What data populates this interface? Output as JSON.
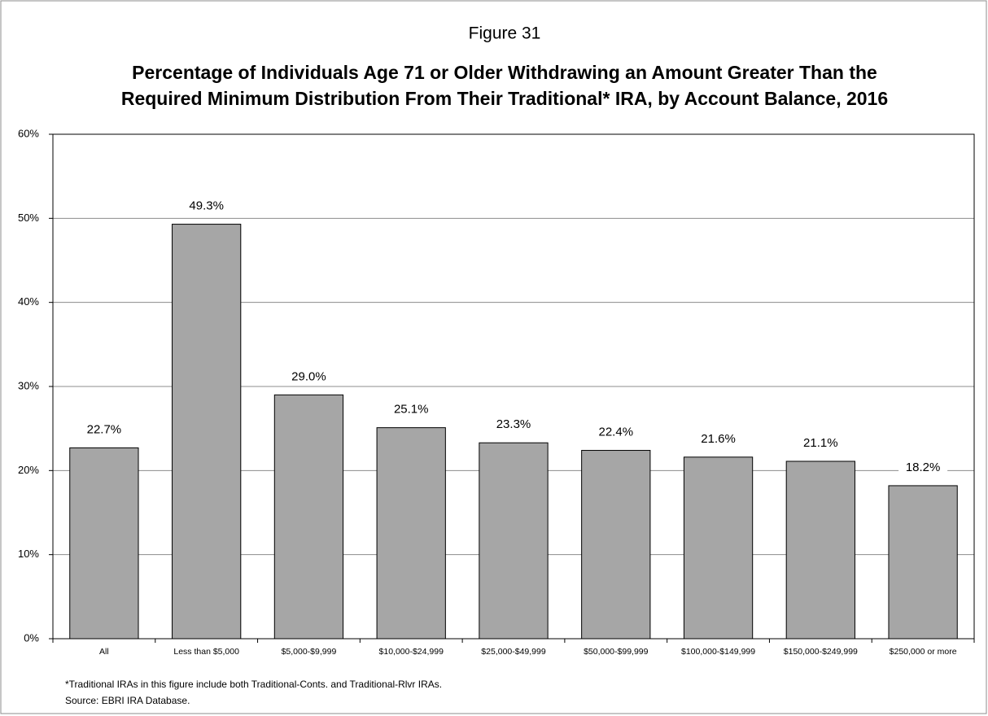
{
  "chart_data": {
    "type": "bar",
    "supertitle": "Figure 31",
    "title": [
      "Percentage of Individuals Age 71 or Older Withdrawing an Amount Greater Than the",
      "Required Minimum Distribution From Their Traditional* IRA, by Account Balance, 2016"
    ],
    "categories": [
      "All",
      "Less than $5,000",
      "$5,000-$9,999",
      "$10,000-$24,999",
      "$25,000-$49,999",
      "$50,000-$99,999",
      "$100,000-$149,999",
      "$150,000-$249,999",
      "$250,000 or more"
    ],
    "values": [
      22.7,
      49.3,
      29.0,
      25.1,
      23.3,
      22.4,
      21.6,
      21.1,
      18.2
    ],
    "value_labels": [
      "22.7%",
      "49.3%",
      "29.0%",
      "25.1%",
      "23.3%",
      "22.4%",
      "21.6%",
      "21.1%",
      "18.2%"
    ],
    "color": "#a6a6a6",
    "ylim": [
      0,
      60
    ],
    "yticks": [
      {
        "value": 0,
        "label": "0%"
      },
      {
        "value": 10,
        "label": "10%"
      },
      {
        "value": 20,
        "label": "20%"
      },
      {
        "value": 30,
        "label": "30%"
      },
      {
        "value": 40,
        "label": "40%"
      },
      {
        "value": 50,
        "label": "50%"
      },
      {
        "value": 60,
        "label": "60%"
      }
    ],
    "grid": true,
    "notes": [
      "*Traditional IRAs in this figure include both Traditional-Conts. and Traditional-Rlvr IRAs.",
      "Source: EBRI IRA Database."
    ]
  }
}
